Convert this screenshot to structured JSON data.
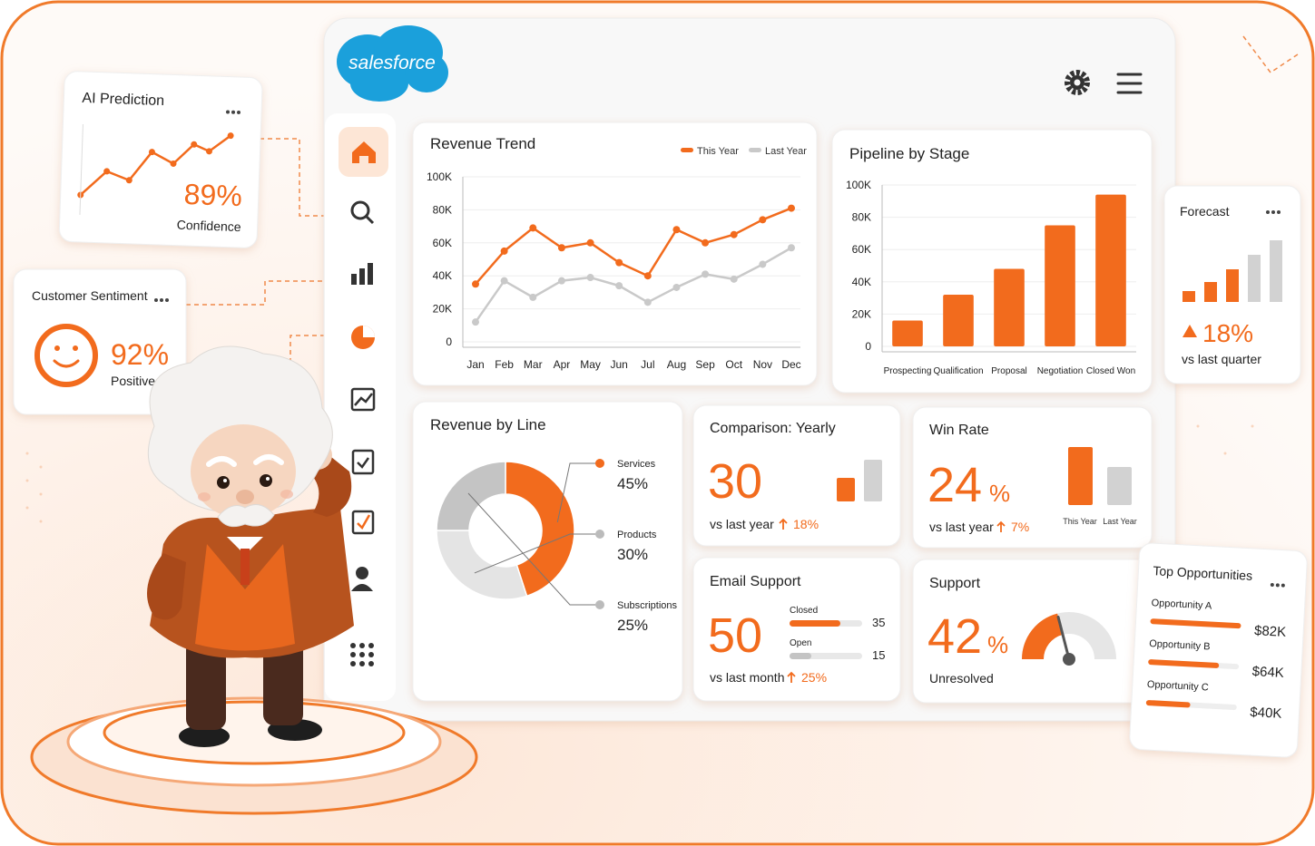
{
  "logo": "salesforce",
  "ai_prediction": {
    "title": "AI Prediction",
    "value": "89%",
    "label": "Confidence"
  },
  "customer_sentiment": {
    "title": "Customer Sentiment",
    "value": "92%",
    "label": "Positive"
  },
  "forecast": {
    "title": "Forecast",
    "value": "18%",
    "label": "vs last quarter"
  },
  "chart_data": [
    {
      "type": "line",
      "title": "Revenue Trend",
      "categories": [
        "Jan",
        "Feb",
        "Mar",
        "Apr",
        "May",
        "Jun",
        "Jul",
        "Aug",
        "Sep",
        "Oct",
        "Nov",
        "Dec"
      ],
      "series": [
        {
          "name": "This Year",
          "color": "#f26b1d",
          "values": [
            35000,
            55000,
            69000,
            57000,
            60000,
            48000,
            40000,
            68000,
            60000,
            65000,
            74000,
            81000
          ]
        },
        {
          "name": "Last Year",
          "color": "#c9c9c9",
          "values": [
            12000,
            37000,
            27000,
            37000,
            39000,
            34000,
            24000,
            33000,
            41000,
            38000,
            47000,
            57000
          ]
        }
      ],
      "ylim": [
        0,
        100000
      ],
      "yticks": [
        0,
        {
          "value": 20000,
          "label": "20K"
        },
        {
          "value": 40000,
          "label": "40K"
        },
        {
          "value": 60000,
          "label": "60K"
        },
        {
          "value": 80000,
          "label": "80K"
        },
        {
          "value": 100000,
          "label": "100K"
        }
      ],
      "grid": true,
      "legend": "top-right"
    },
    {
      "type": "bar",
      "title": "Pipeline by Stage",
      "categories": [
        "Prospecting",
        "Qualification",
        "Proposal",
        "Negotiation",
        "Closed Won"
      ],
      "values": [
        16000,
        32000,
        48000,
        75000,
        94000
      ],
      "color": "#f26b1d",
      "ylim": [
        0,
        100000
      ],
      "yticks": [
        0,
        {
          "value": 20000,
          "label": "20K"
        },
        {
          "value": 40000,
          "label": "40K"
        },
        {
          "value": 60000,
          "label": "60K"
        },
        {
          "value": 80000,
          "label": "80K"
        },
        {
          "value": 100000,
          "label": "100K"
        }
      ],
      "grid": true
    },
    {
      "type": "donut",
      "title": "Revenue by Line",
      "categories": [
        "Services",
        "Products",
        "Subscriptions"
      ],
      "values": [
        45,
        30,
        25
      ],
      "value_labels": [
        "45%",
        "30%",
        "25%"
      ],
      "colors": [
        "#f26b1d",
        "#e4e4e4",
        "#c4c4c4"
      ]
    }
  ],
  "comparison": {
    "title": "Comparison: Yearly",
    "value": 30,
    "label": "vs last year",
    "change": "18%"
  },
  "win_rate": {
    "title": "Win Rate",
    "value": 24,
    "unit": "%",
    "label": "vs last year",
    "change": "7%",
    "bar_labels": [
      "This Year",
      "Last Year"
    ]
  },
  "email_support": {
    "title": "Email Support",
    "value": 50,
    "label": "vs last month",
    "change": "25%",
    "rows": [
      {
        "name": "Closed",
        "value": 35
      },
      {
        "name": "Open",
        "value": 15
      }
    ]
  },
  "support": {
    "title": "Support",
    "value": 42,
    "unit": "%",
    "label": "Unresolved"
  },
  "top_opportunities": {
    "title": "Top Opportunities",
    "items": [
      {
        "name": "Opportunity A",
        "value": 82000,
        "label": "$82K"
      },
      {
        "name": "Opportunity B",
        "value": 64000,
        "label": "$64K"
      },
      {
        "name": "Opportunity C",
        "value": 40000,
        "label": "$40K"
      }
    ]
  }
}
